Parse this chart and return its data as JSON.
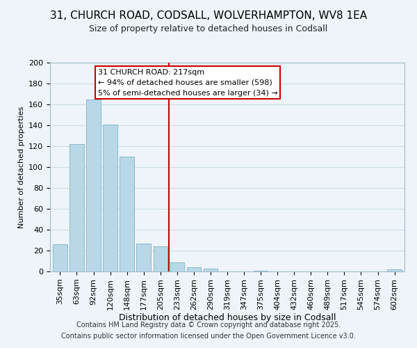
{
  "title1": "31, CHURCH ROAD, CODSALL, WOLVERHAMPTON, WV8 1EA",
  "title2": "Size of property relative to detached houses in Codsall",
  "xlabel": "Distribution of detached houses by size in Codsall",
  "ylabel": "Number of detached properties",
  "categories": [
    "35sqm",
    "63sqm",
    "92sqm",
    "120sqm",
    "148sqm",
    "177sqm",
    "205sqm",
    "233sqm",
    "262sqm",
    "290sqm",
    "319sqm",
    "347sqm",
    "375sqm",
    "404sqm",
    "432sqm",
    "460sqm",
    "489sqm",
    "517sqm",
    "545sqm",
    "574sqm",
    "602sqm"
  ],
  "values": [
    26,
    122,
    165,
    141,
    110,
    27,
    24,
    9,
    4,
    3,
    0,
    0,
    1,
    0,
    0,
    0,
    0,
    0,
    0,
    0,
    2
  ],
  "bar_color": "#b8d8e8",
  "bar_edge_color": "#8ab8cc",
  "vline_x": 6.5,
  "vline_color": "#cc0000",
  "annotation_title": "31 CHURCH ROAD: 217sqm",
  "annotation_line1": "← 94% of detached houses are smaller (598)",
  "annotation_line2": "5% of semi-detached houses are larger (34) →",
  "annotation_box_facecolor": "#ffffff",
  "annotation_box_edgecolor": "#cc0000",
  "footer1": "Contains HM Land Registry data © Crown copyright and database right 2025.",
  "footer2": "Contains public sector information licensed under the Open Government Licence v3.0.",
  "ylim": [
    0,
    200
  ],
  "yticks": [
    0,
    20,
    40,
    60,
    80,
    100,
    120,
    140,
    160,
    180,
    200
  ],
  "grid_color": "#cddde8",
  "bg_color": "#eef4f9",
  "title1_fontsize": 11,
  "title2_fontsize": 9,
  "xlabel_fontsize": 9,
  "ylabel_fontsize": 8,
  "tick_fontsize": 8,
  "footer_fontsize": 7
}
